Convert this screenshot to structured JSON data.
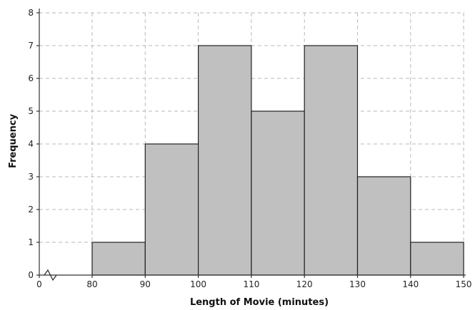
{
  "chart_data": {
    "type": "bar",
    "title": "",
    "xlabel": "Length of Movie (minutes)",
    "ylabel": "Frequency",
    "bins": [
      {
        "from": 80,
        "to": 90,
        "value": 1
      },
      {
        "from": 90,
        "to": 100,
        "value": 4
      },
      {
        "from": 100,
        "to": 110,
        "value": 7
      },
      {
        "from": 110,
        "to": 120,
        "value": 5
      },
      {
        "from": 120,
        "to": 130,
        "value": 7
      },
      {
        "from": 130,
        "to": 140,
        "value": 3
      },
      {
        "from": 140,
        "to": 150,
        "value": 1
      }
    ],
    "x_ticks": [
      "0",
      "80",
      "90",
      "100",
      "110",
      "120",
      "130",
      "140",
      "150"
    ],
    "y_ticks": [
      "0",
      "1",
      "2",
      "3",
      "4",
      "5",
      "6",
      "7",
      "8"
    ],
    "ylim": [
      0,
      8
    ],
    "axis_break": true,
    "grid": true,
    "bar_color": "#c0c0c0"
  }
}
